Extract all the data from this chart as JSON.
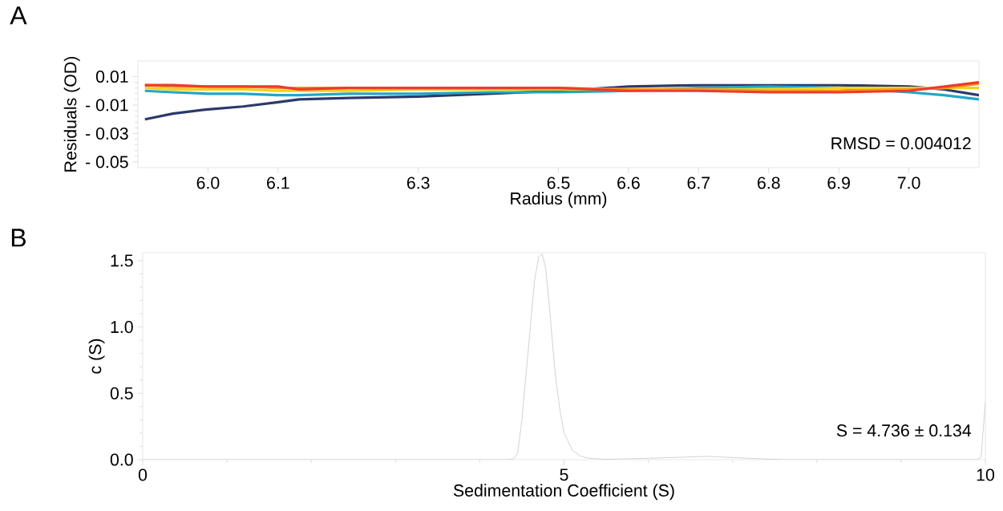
{
  "chart_data": [
    {
      "type": "line",
      "xlabel": "Radius (mm)",
      "ylabel": "Residuals (OD)",
      "marker": "none",
      "annotations": [
        "A",
        "RMSD = 0.004012"
      ],
      "xlim": [
        5.9,
        7.1
      ],
      "ylim": [
        -0.054,
        0.021
      ],
      "xticks": [
        {
          "value": 6.0,
          "label": "6.0"
        },
        {
          "value": 6.1,
          "label": "6.1"
        },
        {
          "value": 6.3,
          "label": "6.3"
        },
        {
          "value": 6.5,
          "label": "6.5"
        },
        {
          "value": 6.6,
          "label": "6.6"
        },
        {
          "value": 6.7,
          "label": "6.7"
        },
        {
          "value": 6.8,
          "label": "6.8"
        },
        {
          "value": 6.9,
          "label": "6.9"
        },
        {
          "value": 7.0,
          "label": "7.0"
        }
      ],
      "yticks": [
        {
          "value": 0.01,
          "label": "0.01"
        },
        {
          "value": -0.01,
          "label": "- 0.01"
        },
        {
          "value": -0.03,
          "label": "- 0.03"
        },
        {
          "value": -0.05,
          "label": "- 0.05"
        }
      ],
      "x": [
        5.91,
        5.95,
        6.0,
        6.05,
        6.1,
        6.13,
        6.2,
        6.3,
        6.4,
        6.5,
        6.6,
        6.7,
        6.8,
        6.9,
        7.0,
        7.05,
        7.1
      ],
      "series": [
        {
          "color": "#2b3a6b",
          "values": [
            -0.02,
            -0.016,
            -0.013,
            -0.011,
            -0.008,
            -0.006,
            -0.005,
            -0.004,
            -0.002,
            0.0,
            0.003,
            0.004,
            0.004,
            0.004,
            0.003,
            0.001,
            -0.003
          ]
        },
        {
          "color": "#22a6c8",
          "values": [
            0.0,
            -0.001,
            -0.002,
            -0.002,
            -0.003,
            -0.003,
            -0.002,
            -0.002,
            -0.001,
            -0.001,
            0.0,
            0.002,
            0.003,
            0.002,
            -0.001,
            -0.003,
            -0.006
          ]
        },
        {
          "color": "#f2d21c",
          "values": [
            0.002,
            0.001,
            0.001,
            0.001,
            0.0,
            0.0,
            0.0,
            0.001,
            0.001,
            0.001,
            0.001,
            0.001,
            0.001,
            0.002,
            0.002,
            0.002,
            0.002
          ]
        },
        {
          "color": "#f39a1e",
          "values": [
            0.004,
            0.003,
            0.003,
            0.003,
            0.002,
            0.002,
            0.002,
            0.002,
            0.002,
            0.002,
            0.001,
            0.001,
            0.0,
            0.0,
            0.001,
            0.002,
            0.005
          ]
        },
        {
          "color": "#ee3b2a",
          "values": [
            0.004,
            0.004,
            0.003,
            0.003,
            0.003,
            0.001,
            0.002,
            0.002,
            0.002,
            0.002,
            0.0,
            0.0,
            -0.001,
            -0.001,
            0.0,
            0.003,
            0.006
          ]
        }
      ]
    },
    {
      "type": "line",
      "xlabel": "Sedimentation Coefficient (S)",
      "ylabel": "c (S)",
      "marker": "none",
      "annotations": [
        "B",
        "S = 4.736 ± 0.134"
      ],
      "xlim": [
        0,
        10
      ],
      "ylim": [
        0,
        1.56
      ],
      "xticks": [
        0,
        5,
        10
      ],
      "yticks": [
        {
          "value": 0,
          "label": "0.0"
        },
        {
          "value": 0.5,
          "label": "0.5"
        },
        {
          "value": 1.0,
          "label": "1.0"
        },
        {
          "value": 1.5,
          "label": "1.5"
        }
      ],
      "x": [
        0,
        4.3,
        4.4,
        4.45,
        4.5,
        4.55,
        4.6,
        4.65,
        4.7,
        4.74,
        4.78,
        4.82,
        4.86,
        4.9,
        4.95,
        5.0,
        5.1,
        5.2,
        5.3,
        5.5,
        6.0,
        6.7,
        7.2,
        7.6,
        9.9,
        9.95,
        10
      ],
      "series": [
        {
          "color": "#c8c8c8",
          "values": [
            0,
            0,
            0.005,
            0.05,
            0.3,
            0.65,
            1.0,
            1.35,
            1.53,
            1.55,
            1.45,
            1.2,
            0.9,
            0.62,
            0.38,
            0.2,
            0.07,
            0.025,
            0.01,
            0.003,
            0.01,
            0.025,
            0.01,
            0,
            0,
            0.02,
            0.44
          ]
        }
      ]
    }
  ]
}
